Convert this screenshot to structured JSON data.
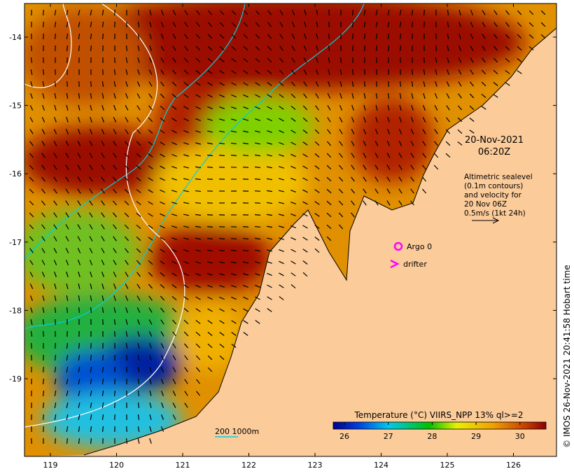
{
  "map": {
    "date": "20-Nov-2021",
    "time": "06:20Z",
    "legend_lines": [
      "Altimetric sealevel",
      "(0.1m contours)",
      "and velocity for",
      "20 Nov 06Z",
      "0.5m/s (1kt 24h)"
    ],
    "argo_label": "Argo 0",
    "drifter_label": "drifter",
    "scale_label": "200  1000m",
    "colorbar_title": "Temperature (°C) VIIRS_NPP 13% ql>=2",
    "colorbar_ticks": [
      "26",
      "27",
      "28",
      "29",
      "30"
    ],
    "x_ticks": [
      "119",
      "120",
      "121",
      "122",
      "123",
      "124",
      "125",
      "126"
    ],
    "y_ticks": [
      "-14",
      "-15",
      "-16",
      "-17",
      "-18",
      "-19"
    ],
    "credit": "© IMOS 26-Nov-2021 20:41:58 Hobart time",
    "colors": {
      "land": "#fbcb9a",
      "argo": "#ff00ff",
      "contour": "#00d0e0"
    }
  }
}
